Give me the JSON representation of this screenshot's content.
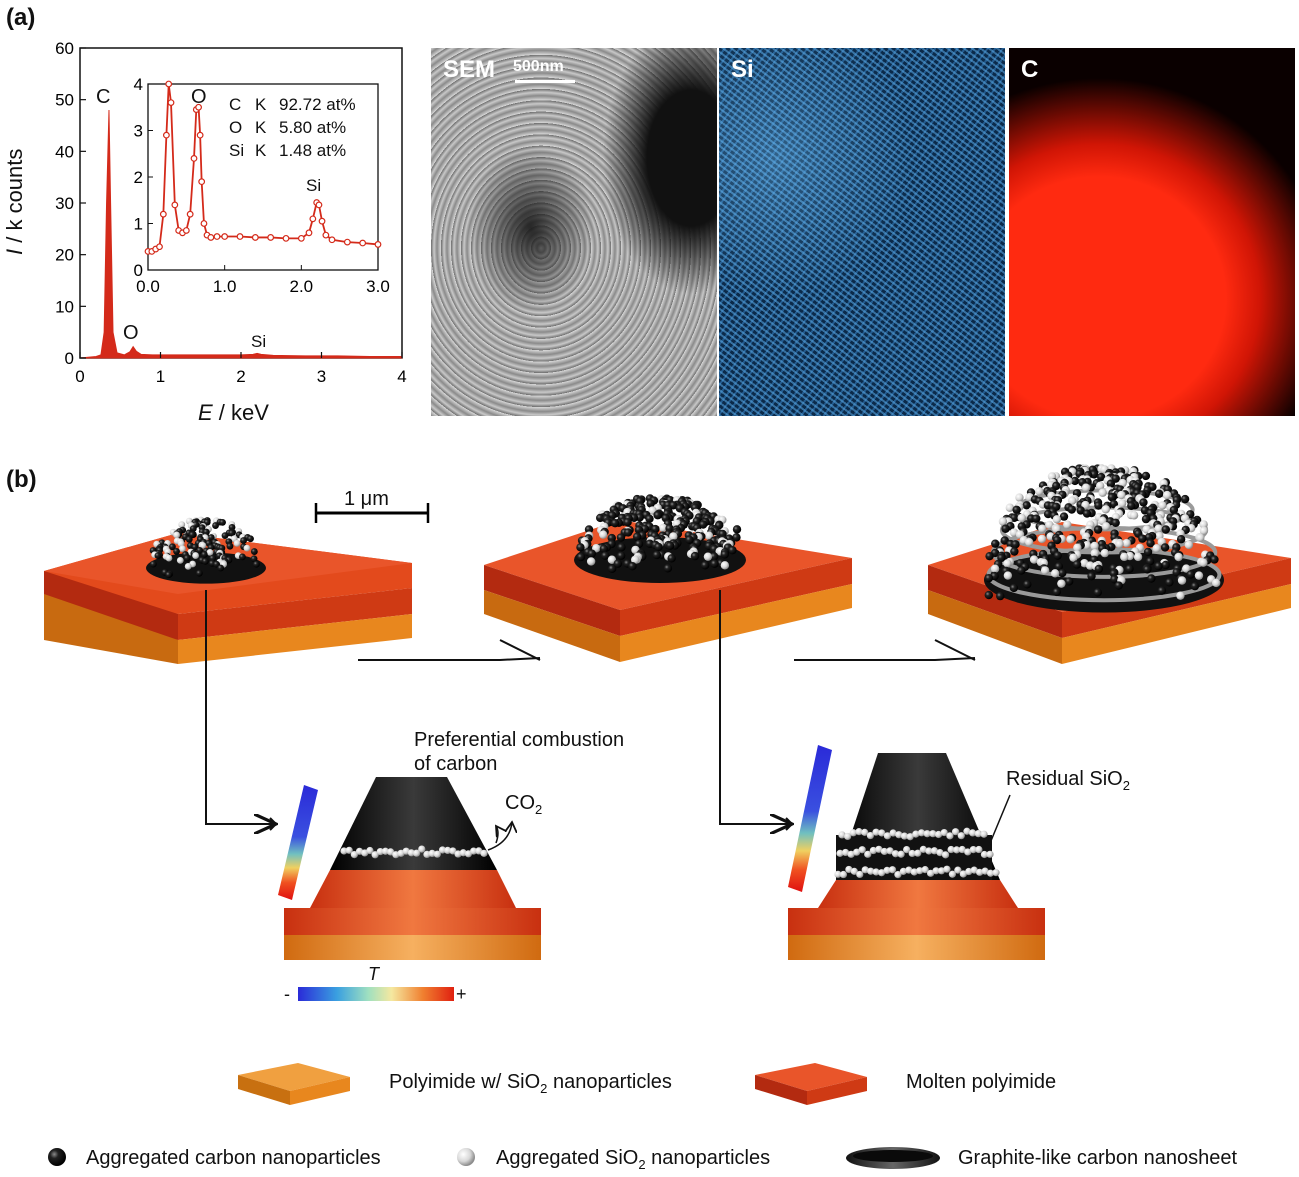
{
  "panel_a": {
    "label": "(a)",
    "edx_chart": {
      "ylabel_italic": "I",
      "ylabel_rest": " / k counts",
      "xlabel_italic": "E",
      "xlabel_rest": " / keV",
      "peak_labels": {
        "C": "C",
        "O": "O",
        "Si": "Si"
      },
      "inset": {
        "peak_labels": {
          "O": "O",
          "Si": "Si"
        },
        "composition": [
          {
            "el": "C",
            "line": "K",
            "value": "92.72 at%"
          },
          {
            "el": "O",
            "line": "K",
            "value": "5.80 at%"
          },
          {
            "el": "Si",
            "line": "K",
            "value": "1.48 at%"
          }
        ]
      }
    },
    "maps": {
      "sem_label": "SEM",
      "scale_label": "500nm",
      "si_label": "Si",
      "c_label": "C"
    }
  },
  "panel_b": {
    "label": "(b)",
    "scale_label": "1 μm",
    "stage1_annotation_line1": "Preferential combustion",
    "stage1_annotation_line2": "of carbon",
    "co2_main": "CO",
    "co2_sub": "2",
    "residual_main": "Residual SiO",
    "residual_sub": "2",
    "temp_label": "T",
    "temp_minus": "-",
    "temp_plus": "+"
  },
  "legend": {
    "polyimide_a": "Polyimide w/ SiO",
    "polyimide_sub": "2",
    "polyimide_b": " nanoparticles",
    "molten": "Molten polyimide",
    "carbon_np": "Aggregated carbon nanoparticles",
    "sio2_a": "Aggregated SiO",
    "sio2_sub": "2",
    "sio2_b": " nanoparticles",
    "graphite": "Graphite-like carbon nanosheet"
  },
  "colors": {
    "spectrum": "#d42a1a",
    "polyimide": "#e8871e",
    "molten": "#d6401c",
    "carbon_particle": "#1a1a1a",
    "sio2_particle": "#d9d9d9"
  },
  "chart_data": [
    {
      "type": "area",
      "title": "",
      "xlabel": "E / keV",
      "ylabel": "I / k counts",
      "xlim": [
        0,
        4
      ],
      "ylim": [
        0,
        60
      ],
      "xticks": [
        0,
        1,
        2,
        3,
        4
      ],
      "yticks": [
        0,
        10,
        20,
        30,
        40,
        50,
        60
      ],
      "x": [
        0.0,
        0.2,
        0.26,
        0.3,
        0.33,
        0.36,
        0.38,
        0.41,
        0.46,
        0.55,
        0.62,
        0.66,
        0.7,
        0.76,
        0.9,
        1.2,
        1.5,
        1.8,
        2.0,
        2.15,
        2.2,
        2.25,
        2.4,
        2.8,
        3.2,
        3.6,
        4.0
      ],
      "y": [
        0,
        0.3,
        0.6,
        5,
        30,
        48,
        30,
        5,
        1.0,
        0.6,
        1.2,
        2.2,
        1.3,
        0.7,
        0.6,
        0.6,
        0.6,
        0.6,
        0.6,
        0.7,
        0.9,
        0.7,
        0.5,
        0.4,
        0.4,
        0.3,
        0.3
      ]
    },
    {
      "type": "line",
      "title": "",
      "xlim": [
        0,
        3
      ],
      "ylim": [
        0,
        4
      ],
      "xticks": [
        "0.0",
        "1.0",
        "2.0",
        "3.0"
      ],
      "yticks": [
        0,
        1,
        2,
        3,
        4
      ],
      "x": [
        0.0,
        0.05,
        0.1,
        0.15,
        0.2,
        0.24,
        0.27,
        0.3,
        0.35,
        0.4,
        0.45,
        0.5,
        0.55,
        0.6,
        0.63,
        0.66,
        0.68,
        0.7,
        0.73,
        0.77,
        0.82,
        0.9,
        1.0,
        1.2,
        1.4,
        1.6,
        1.8,
        2.0,
        2.1,
        2.15,
        2.2,
        2.23,
        2.27,
        2.32,
        2.4,
        2.6,
        2.8,
        3.0
      ],
      "y": [
        0.4,
        0.4,
        0.45,
        0.5,
        1.2,
        2.9,
        4.2,
        3.6,
        1.4,
        0.85,
        0.8,
        0.85,
        1.2,
        2.4,
        3.45,
        3.5,
        2.9,
        1.9,
        1.0,
        0.75,
        0.7,
        0.72,
        0.72,
        0.72,
        0.7,
        0.7,
        0.68,
        0.68,
        0.8,
        1.1,
        1.45,
        1.4,
        1.05,
        0.75,
        0.65,
        0.6,
        0.58,
        0.55
      ]
    }
  ]
}
